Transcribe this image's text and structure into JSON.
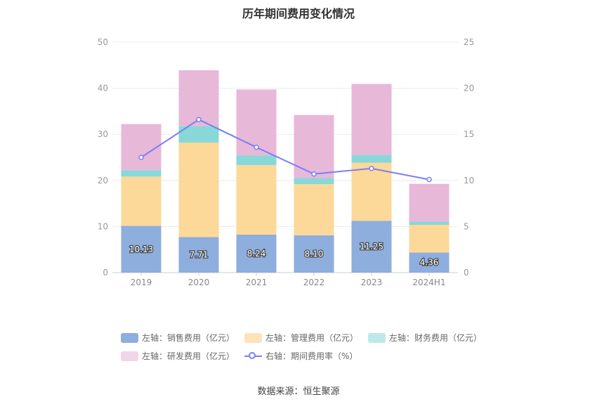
{
  "chart_data": {
    "type": "bar",
    "title": "历年期间费用变化情况",
    "categories": [
      "2019",
      "2020",
      "2021",
      "2022",
      "2023",
      "2024H1"
    ],
    "series": [
      {
        "name": "左轴：销售费用（亿元）",
        "axis": "left",
        "type": "bar",
        "color": "#8eaedd",
        "values": [
          10.13,
          7.71,
          8.24,
          8.1,
          11.25,
          4.36
        ],
        "show_labels": true
      },
      {
        "name": "左轴：管理费用（亿元）",
        "axis": "left",
        "type": "bar",
        "color": "#fcd899",
        "values": [
          10.7,
          20.5,
          15.1,
          11.1,
          12.6,
          6.0
        ]
      },
      {
        "name": "左轴：财务费用（亿元）",
        "axis": "left",
        "type": "bar",
        "color": "#88d8d8",
        "values": [
          1.4,
          3.6,
          2.1,
          1.3,
          1.7,
          0.7
        ]
      },
      {
        "name": "左轴：研发费用（亿元）",
        "axis": "left",
        "type": "bar",
        "color": "#e8b8d8",
        "values": [
          10.0,
          12.1,
          14.3,
          13.7,
          15.4,
          8.2
        ]
      },
      {
        "name": "右轴：期间费用率（%）",
        "axis": "right",
        "type": "line",
        "color": "#7b7ef5",
        "values": [
          12.5,
          16.6,
          13.6,
          10.7,
          11.3,
          10.1
        ]
      }
    ],
    "left_axis": {
      "ylim": [
        0,
        50
      ],
      "ticks": [
        "0",
        "10",
        "20",
        "30",
        "40",
        "50"
      ]
    },
    "right_axis": {
      "ylim": [
        0,
        25
      ],
      "ticks": [
        "0",
        "5",
        "10",
        "15",
        "20",
        "25"
      ]
    },
    "grid": true,
    "legend_position": "bottom"
  },
  "legend": {
    "items": [
      {
        "label": "左轴：销售费用（亿元）",
        "color": "#8eaedd"
      },
      {
        "label": "左轴：管理费用（亿元）",
        "color": "#fde3ba"
      },
      {
        "label": "左轴：财务费用（亿元）",
        "color": "#bde9e9"
      },
      {
        "label": "左轴：研发费用（亿元）",
        "color": "#f1d6ea"
      }
    ],
    "line_item": {
      "label": "右轴：期间费用率（%）",
      "color": "#7b7ef5"
    }
  },
  "source": "数据来源：恒生聚源"
}
